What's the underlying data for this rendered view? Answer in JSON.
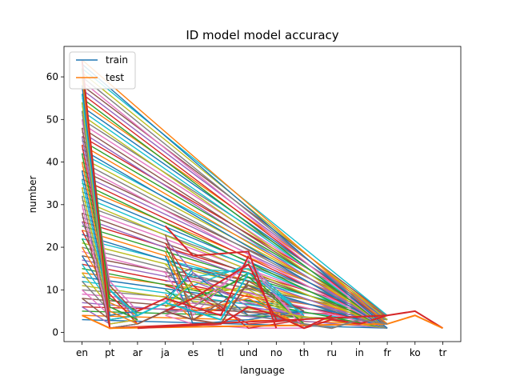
{
  "chart_data": {
    "type": "line",
    "title": "ID model model accuracy",
    "xlabel": "language",
    "ylabel": "number",
    "categories": [
      "en",
      "pt",
      "ar",
      "ja",
      "es",
      "tl",
      "und",
      "no",
      "th",
      "ru",
      "in",
      "fr",
      "ko",
      "tr"
    ],
    "ylim": [
      -2.15,
      67.15
    ],
    "yticks": [
      0,
      10,
      20,
      30,
      40,
      50,
      60
    ],
    "legend_position": "upper-left",
    "legend": [
      {
        "name": "train",
        "color": "#1f77b4"
      },
      {
        "name": "test",
        "color": "#ff7f0e"
      }
    ],
    "palette": [
      "#1f77b4",
      "#ff7f0e",
      "#2ca02c",
      "#d62728",
      "#9467bd",
      "#8c564b",
      "#e377c2",
      "#7f7f7f",
      "#bcbd22",
      "#17becf"
    ],
    "series": [
      {
        "x": [
          "en",
          "pt",
          "fr",
          "ko",
          "tr"
        ],
        "y": [
          64,
          1,
          4,
          5,
          1
        ]
      },
      {
        "x": [
          "en",
          "pt",
          "fr",
          "ko",
          "tr"
        ],
        "y": [
          4,
          1,
          2,
          4,
          1
        ]
      },
      {
        "x": [
          "ja",
          "es",
          "und",
          "no"
        ],
        "y": [
          25,
          18,
          19,
          1
        ]
      },
      {
        "x": [
          "ja",
          "es",
          "und",
          "no"
        ],
        "y": [
          5,
          8,
          16,
          3
        ]
      },
      {
        "x": [
          "ar",
          "ja",
          "es",
          "tl",
          "und"
        ],
        "y": [
          5,
          8,
          6,
          4,
          18
        ]
      },
      {
        "x": [
          "ar",
          "ja",
          "es",
          "tl",
          "und"
        ],
        "y": [
          2,
          5,
          3,
          2,
          12
        ]
      },
      {
        "x": [
          "th",
          "ru",
          "in",
          "fr"
        ],
        "y": [
          1,
          3,
          2,
          4
        ]
      },
      {
        "x": [
          "th",
          "ru",
          "in",
          "fr"
        ],
        "y": [
          2,
          1,
          3,
          2
        ]
      },
      {
        "x": [
          "ar",
          "tl",
          "und",
          "no",
          "th",
          "ru"
        ],
        "y": [
          1,
          2,
          6,
          4,
          1,
          4
        ]
      },
      {
        "x": [
          "pt",
          "ar",
          "ja",
          "tl",
          "und"
        ],
        "y": [
          10,
          4,
          7,
          3,
          14
        ]
      }
    ]
  }
}
